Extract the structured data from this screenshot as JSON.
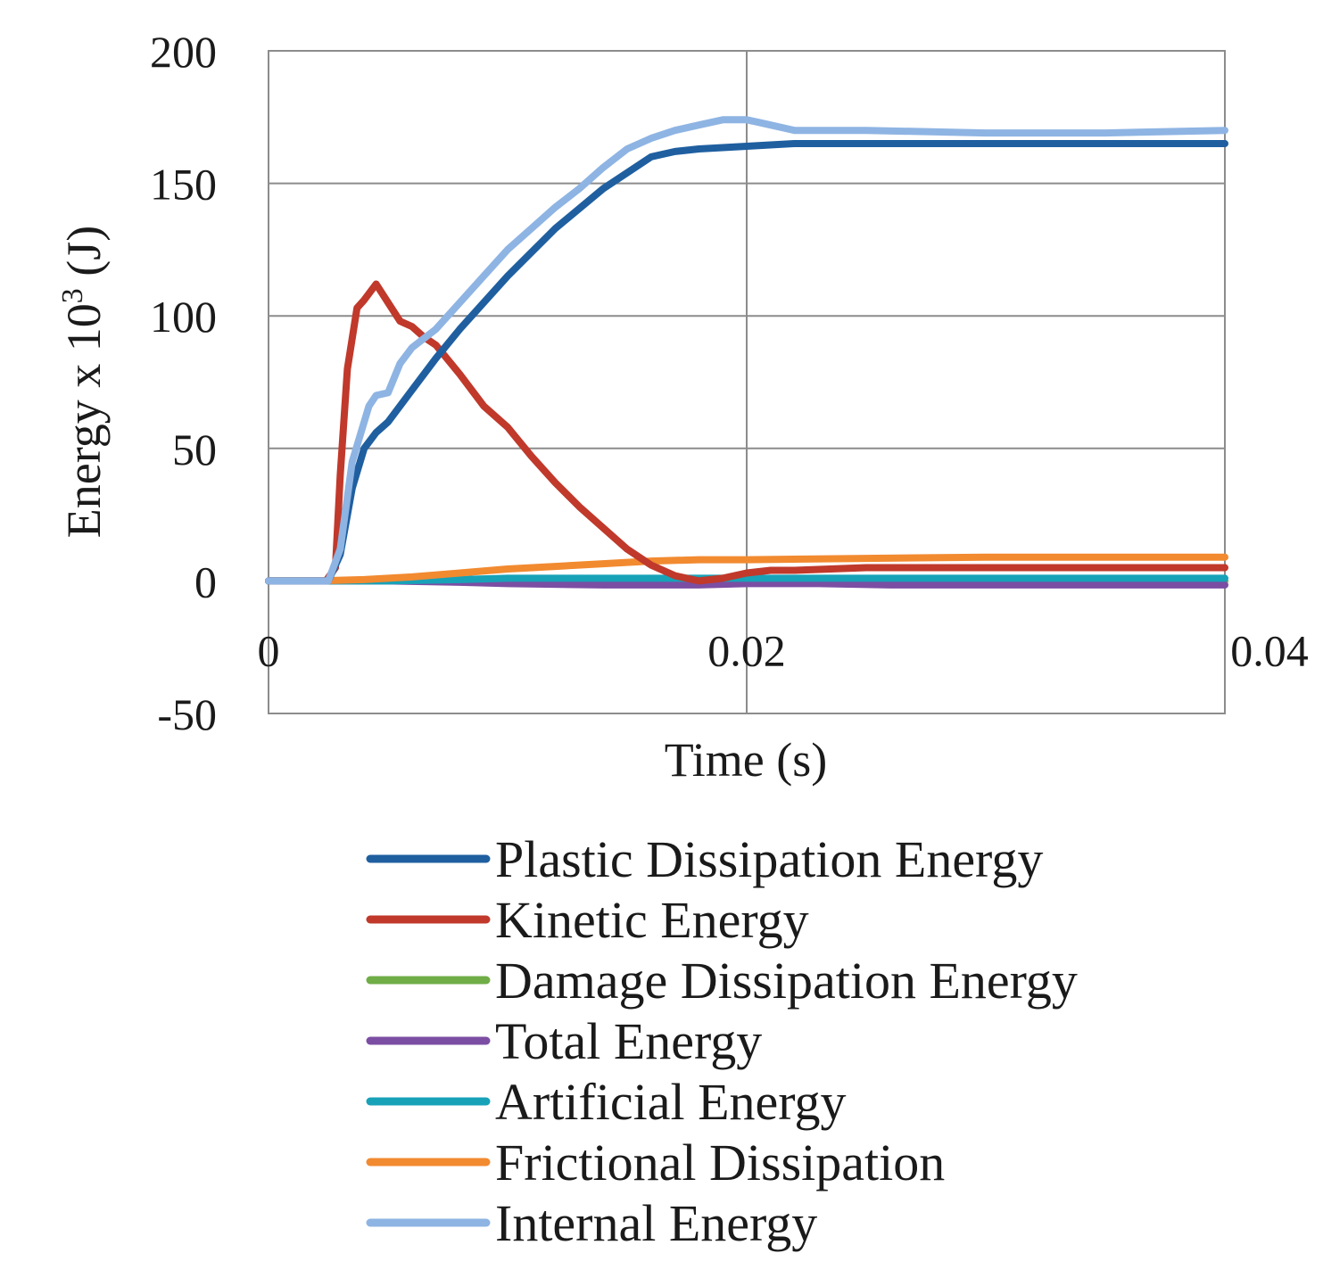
{
  "chart_data": {
    "type": "line",
    "title": "",
    "xlabel": "Time (s)",
    "ylabel": "Energy x 10",
    "ylabel_exp": "3",
    "ylabel_unit": " (J)",
    "xlim": [
      0,
      0.04
    ],
    "ylim": [
      -50,
      200
    ],
    "xticks": [
      0,
      0.02,
      0.04
    ],
    "xtick_labels": [
      "0",
      "0.02",
      "0.04"
    ],
    "yticks": [
      200,
      150,
      100,
      50,
      0,
      -50
    ],
    "ytick_labels": [
      "200",
      "150",
      "100",
      "50",
      "0",
      "-50"
    ],
    "grid": true,
    "legend_position": "bottom",
    "series": [
      {
        "name": "Plastic Dissipation Energy",
        "color": "#1f5fa0",
        "x": [
          0,
          0.0025,
          0.003,
          0.0035,
          0.004,
          0.0045,
          0.005,
          0.006,
          0.007,
          0.008,
          0.01,
          0.012,
          0.014,
          0.016,
          0.017,
          0.018,
          0.02,
          0.022,
          0.025,
          0.03,
          0.035,
          0.04
        ],
        "y": [
          0,
          0,
          10,
          35,
          50,
          56,
          60,
          72,
          84,
          95,
          115,
          133,
          148,
          160,
          162,
          163,
          164,
          165,
          165,
          165,
          165,
          165
        ]
      },
      {
        "name": "Kinetic Energy",
        "color": "#c0392b",
        "x": [
          0,
          0.0024,
          0.0028,
          0.003,
          0.0033,
          0.0037,
          0.004,
          0.0045,
          0.005,
          0.0055,
          0.006,
          0.0065,
          0.007,
          0.008,
          0.009,
          0.01,
          0.011,
          0.012,
          0.013,
          0.014,
          0.015,
          0.016,
          0.017,
          0.018,
          0.019,
          0.02,
          0.021,
          0.022,
          0.025,
          0.03,
          0.035,
          0.04
        ],
        "y": [
          0,
          0,
          5,
          40,
          80,
          103,
          106,
          112,
          105,
          98,
          96,
          92,
          89,
          78,
          66,
          58,
          47,
          37,
          28,
          20,
          12,
          6,
          2,
          0,
          1,
          3,
          4,
          4,
          5,
          5,
          5,
          5
        ]
      },
      {
        "name": "Damage Dissipation Energy",
        "color": "#70ad47",
        "x": [
          0,
          0.005,
          0.01,
          0.02,
          0.03,
          0.04
        ],
        "y": [
          0,
          0,
          0,
          0,
          0,
          0
        ]
      },
      {
        "name": "Total Energy",
        "color": "#7b4ea3",
        "x": [
          0,
          0.005,
          0.008,
          0.01,
          0.014,
          0.016,
          0.018,
          0.02,
          0.023,
          0.026,
          0.03,
          0.035,
          0.04
        ],
        "y": [
          0,
          0,
          -0.5,
          -1,
          -1.5,
          -1.5,
          -1.5,
          -1,
          -1,
          -1.5,
          -1.5,
          -1.5,
          -1.5
        ]
      },
      {
        "name": "Artificial Energy",
        "color": "#17a2b8",
        "x": [
          0,
          0.005,
          0.008,
          0.01,
          0.015,
          0.02,
          0.03,
          0.04
        ],
        "y": [
          0,
          0,
          0.5,
          1,
          1,
          1,
          1,
          1
        ]
      },
      {
        "name": "Frictional Dissipation",
        "color": "#f28a30",
        "x": [
          0,
          0.002,
          0.004,
          0.006,
          0.008,
          0.01,
          0.012,
          0.014,
          0.016,
          0.018,
          0.02,
          0.025,
          0.03,
          0.04
        ],
        "y": [
          0,
          0,
          0.5,
          1.5,
          3,
          4.5,
          5.5,
          6.5,
          7.5,
          8,
          8,
          8.5,
          9,
          9
        ]
      },
      {
        "name": "Internal Energy",
        "color": "#8eb4e3",
        "x": [
          0,
          0.0025,
          0.003,
          0.0035,
          0.004,
          0.0042,
          0.0045,
          0.005,
          0.0055,
          0.006,
          0.007,
          0.008,
          0.009,
          0.01,
          0.011,
          0.012,
          0.013,
          0.014,
          0.015,
          0.016,
          0.017,
          0.018,
          0.019,
          0.0195,
          0.02,
          0.0205,
          0.021,
          0.022,
          0.025,
          0.03,
          0.035,
          0.04
        ],
        "y": [
          0,
          0,
          12,
          45,
          60,
          66,
          70,
          71,
          82,
          88,
          95,
          105,
          115,
          125,
          133,
          141,
          148,
          156,
          163,
          167,
          170,
          172,
          174,
          174,
          174,
          173,
          172,
          170,
          170,
          169,
          169,
          170
        ]
      }
    ]
  }
}
